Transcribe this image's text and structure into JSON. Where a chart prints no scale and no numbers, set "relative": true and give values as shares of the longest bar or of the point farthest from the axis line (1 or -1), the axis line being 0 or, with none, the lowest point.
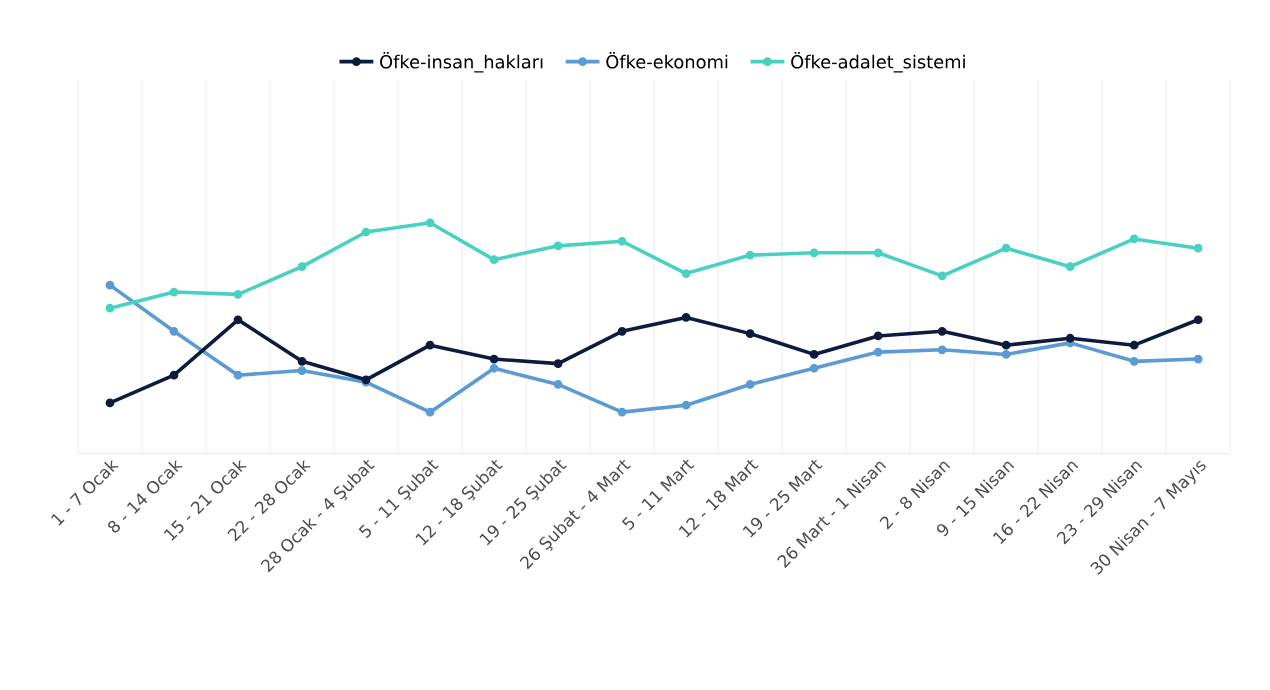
{
  "chart_data": {
    "type": "line",
    "relative": true,
    "grid": "x",
    "legend": "top",
    "marker": "circle",
    "line_style": "solid",
    "categories": [
      "1 - 7 Ocak",
      "8 - 14 Ocak",
      "15 - 21 Ocak",
      "22 - 28 Ocak",
      "28 Ocak - 4 Şubat",
      "5 - 11 Şubat",
      "12 - 18 Şubat",
      "19 - 25 Şubat",
      "26 Şubat - 4 Mart",
      "5 - 11 Mart",
      "12 - 18 Mart",
      "19 - 25 Mart",
      "26 Mart - 1 Nisan",
      "2 - 8 Nisan",
      "9 - 15 Nisan",
      "16 - 22 Nisan",
      "23 - 29 Nisan",
      "30 Nisan - 7 Mayıs"
    ],
    "series": [
      {
        "name": "Öfke-insan_hakları",
        "color": "#0d1b3e",
        "values": [
          0.22,
          0.34,
          0.58,
          0.4,
          0.32,
          0.47,
          0.41,
          0.39,
          0.53,
          0.59,
          0.52,
          0.43,
          0.51,
          0.53,
          0.47,
          0.5,
          0.47,
          0.58
        ]
      },
      {
        "name": "Öfke-ekonomi",
        "color": "#5b9bd5",
        "values": [
          0.73,
          0.53,
          0.34,
          0.36,
          0.31,
          0.18,
          0.37,
          0.3,
          0.18,
          0.21,
          0.3,
          0.37,
          0.44,
          0.45,
          0.43,
          0.48,
          0.4,
          0.41
        ]
      },
      {
        "name": "Öfke-adalet_sistemi",
        "color": "#48d1c1",
        "values": [
          0.63,
          0.7,
          0.69,
          0.81,
          0.96,
          1,
          0.84,
          0.9,
          0.92,
          0.78,
          0.86,
          0.87,
          0.87,
          0.77,
          0.89,
          0.81,
          0.93,
          0.89
        ]
      }
    ]
  }
}
